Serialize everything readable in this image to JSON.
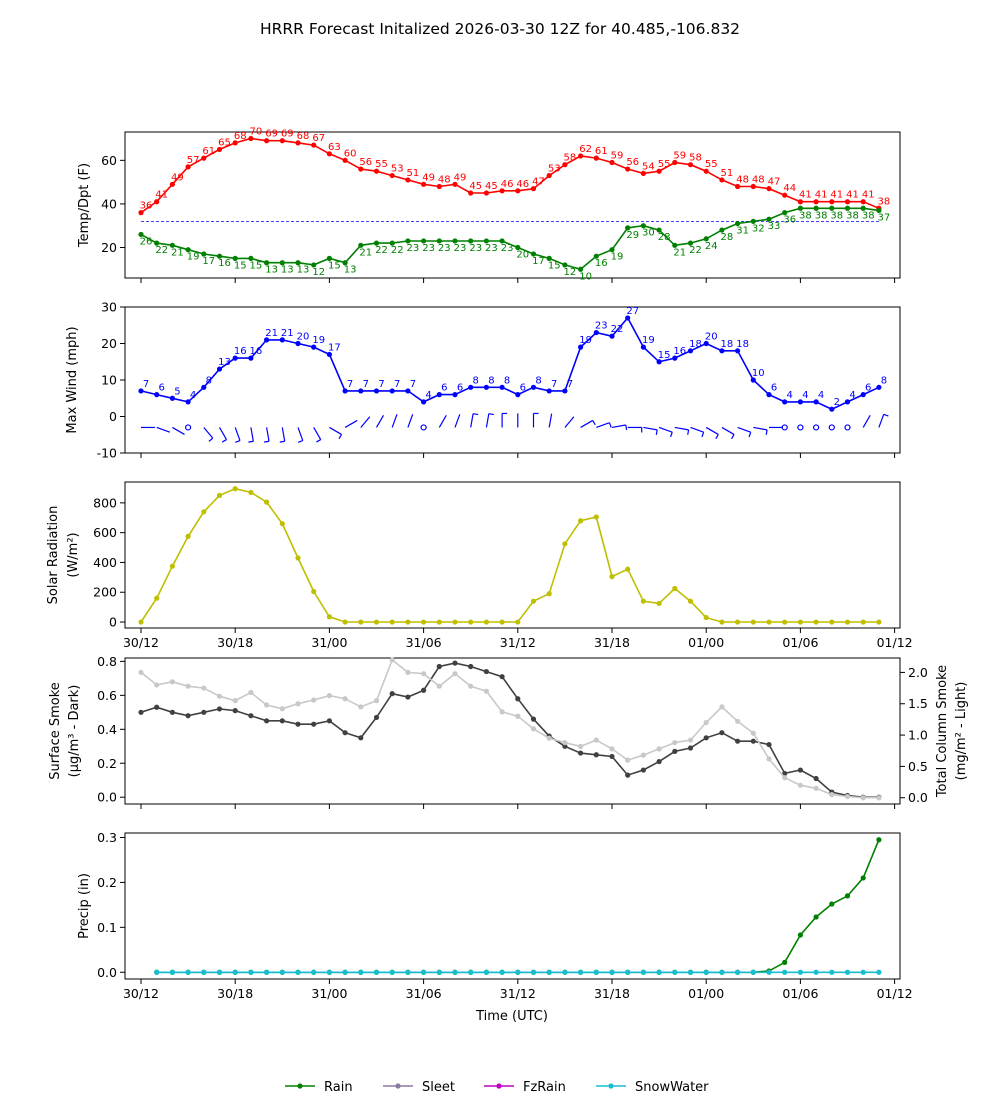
{
  "title": "HRRR Forecast Initalized 2026-03-30 12Z for 40.485,-106.832",
  "time_ticks": [
    "30/12",
    "30/18",
    "31/00",
    "31/06",
    "31/12",
    "31/18",
    "01/00",
    "01/06",
    "01/12"
  ],
  "xlabel": "Time (UTC)",
  "legend": [
    {
      "label": "Rain",
      "color": "#008000"
    },
    {
      "label": "Sleet",
      "color": "#8c7aa0"
    },
    {
      "label": "FzRain",
      "color": "#c000c0"
    },
    {
      "label": "SnowWater",
      "color": "#17becf"
    }
  ],
  "chart_data": [
    {
      "type": "line",
      "ylabel": "Temp/Dpt (F)",
      "ylim": [
        6,
        73
      ],
      "yticks": [
        20,
        40,
        60
      ],
      "freezing_line": 32,
      "series": [
        {
          "name": "Temperature",
          "color": "#ff0000",
          "values": [
            36,
            41,
            49,
            57,
            61,
            65,
            68,
            70,
            69,
            69,
            68,
            67,
            63,
            60,
            56,
            55,
            53,
            51,
            49,
            48,
            49,
            45,
            45,
            46,
            46,
            47,
            53,
            58,
            62,
            61,
            59,
            56,
            54,
            55,
            59,
            58,
            55,
            51,
            48,
            48,
            47,
            44,
            41,
            41,
            41,
            41,
            41,
            38
          ]
        },
        {
          "name": "Dewpoint",
          "color": "#008000",
          "values": [
            26,
            22,
            21,
            19,
            17,
            16,
            15,
            15,
            13,
            13,
            13,
            12,
            15,
            13,
            21,
            22,
            22,
            23,
            23,
            23,
            23,
            23,
            23,
            23,
            20,
            17,
            15,
            12,
            10,
            16,
            19,
            29,
            30,
            28,
            21,
            22,
            24,
            28,
            31,
            32,
            33,
            36,
            38,
            38,
            38,
            38,
            38,
            37
          ]
        }
      ]
    },
    {
      "type": "line",
      "ylabel": "Max Wind (mph)",
      "ylim": [
        -10,
        30
      ],
      "yticks": [
        -10,
        0,
        10,
        20,
        30
      ],
      "series": [
        {
          "name": "Max Wind",
          "color": "#0000ff",
          "values": [
            7,
            6,
            5,
            4,
            8,
            13,
            16,
            16,
            21,
            21,
            20,
            19,
            17,
            7,
            7,
            7,
            7,
            7,
            4,
            6,
            6,
            8,
            8,
            8,
            6,
            8,
            7,
            7,
            19,
            23,
            22,
            27,
            19,
            15,
            16,
            18,
            20,
            18,
            18,
            10,
            6,
            4,
            4,
            4,
            2,
            4,
            6,
            8
          ]
        }
      ]
    },
    {
      "type": "line",
      "ylabel": "Solar Radiation (W/m²)",
      "ylim": [
        -40,
        940
      ],
      "yticks": [
        0,
        200,
        400,
        600,
        800
      ],
      "series": [
        {
          "name": "Solar Radiation",
          "color": "#bfbf00",
          "values": [
            0,
            160,
            375,
            575,
            740,
            850,
            895,
            870,
            805,
            660,
            430,
            205,
            35,
            0,
            0,
            0,
            0,
            0,
            0,
            0,
            0,
            0,
            0,
            0,
            0,
            140,
            190,
            525,
            680,
            705,
            305,
            355,
            140,
            125,
            225,
            140,
            30,
            0,
            0,
            0,
            0,
            0,
            0,
            0,
            0,
            0,
            0,
            0
          ]
        }
      ]
    },
    {
      "type": "line",
      "ylabel": "Surface Smoke (μg/m³ - Dark)",
      "ylabel_right": "Total Column Smoke (mg/m² - Light)",
      "ylim": [
        -0.04,
        0.82
      ],
      "yticks": [
        0.0,
        0.2,
        0.4,
        0.6,
        0.8
      ],
      "ylim_right": [
        -0.1,
        2.23
      ],
      "yticks_right": [
        0.0,
        0.5,
        1.0,
        1.5,
        2.0
      ],
      "series": [
        {
          "name": "Surface Smoke",
          "color": "#404040",
          "axis": "left",
          "values": [
            0.5,
            0.53,
            0.5,
            0.48,
            0.5,
            0.52,
            0.51,
            0.48,
            0.45,
            0.45,
            0.43,
            0.43,
            0.45,
            0.38,
            0.35,
            0.47,
            0.61,
            0.59,
            0.63,
            0.77,
            0.79,
            0.77,
            0.74,
            0.71,
            0.58,
            0.46,
            0.36,
            0.3,
            0.26,
            0.25,
            0.24,
            0.13,
            0.16,
            0.21,
            0.27,
            0.29,
            0.35,
            0.38,
            0.33,
            0.33,
            0.31,
            0.14,
            0.16,
            0.11,
            0.03,
            0.01,
            0.0,
            0.0
          ]
        },
        {
          "name": "Total Column Smoke",
          "color": "#c8c8c8",
          "axis": "right",
          "values": [
            2.0,
            1.8,
            1.85,
            1.78,
            1.75,
            1.62,
            1.55,
            1.68,
            1.48,
            1.42,
            1.5,
            1.56,
            1.63,
            1.58,
            1.45,
            1.55,
            2.2,
            2.0,
            1.98,
            1.78,
            1.98,
            1.78,
            1.7,
            1.37,
            1.3,
            1.1,
            0.95,
            0.88,
            0.82,
            0.92,
            0.78,
            0.6,
            0.68,
            0.78,
            0.88,
            0.92,
            1.2,
            1.45,
            1.22,
            1.03,
            0.62,
            0.32,
            0.2,
            0.15,
            0.05,
            0.02,
            0.0,
            0.0
          ]
        }
      ]
    },
    {
      "type": "line",
      "ylabel": "Precip (in)",
      "ylim": [
        -0.015,
        0.31
      ],
      "yticks": [
        0.0,
        0.1,
        0.2,
        0.3
      ],
      "series": [
        {
          "name": "Rain",
          "color": "#008000",
          "values": [
            null,
            0,
            0,
            0,
            0,
            0,
            0,
            0,
            0,
            0,
            0,
            0,
            0,
            0,
            0,
            0,
            0,
            0,
            0,
            0,
            0,
            0,
            0,
            0,
            0,
            0,
            0,
            0,
            0,
            0,
            0,
            0,
            0,
            0,
            0,
            0,
            0,
            0,
            0,
            0,
            0.003,
            0.022,
            0.083,
            0.123,
            0.152,
            0.17,
            0.21,
            0.295
          ]
        },
        {
          "name": "SnowWater",
          "color": "#17becf",
          "values": [
            null,
            0,
            0,
            0,
            0,
            0,
            0,
            0,
            0,
            0,
            0,
            0,
            0,
            0,
            0,
            0,
            0,
            0,
            0,
            0,
            0,
            0,
            0,
            0,
            0,
            0,
            0,
            0,
            0,
            0,
            0,
            0,
            0,
            0,
            0,
            0,
            0,
            0,
            0,
            0,
            0,
            0,
            0,
            0,
            0,
            0,
            0,
            0
          ]
        }
      ]
    }
  ]
}
